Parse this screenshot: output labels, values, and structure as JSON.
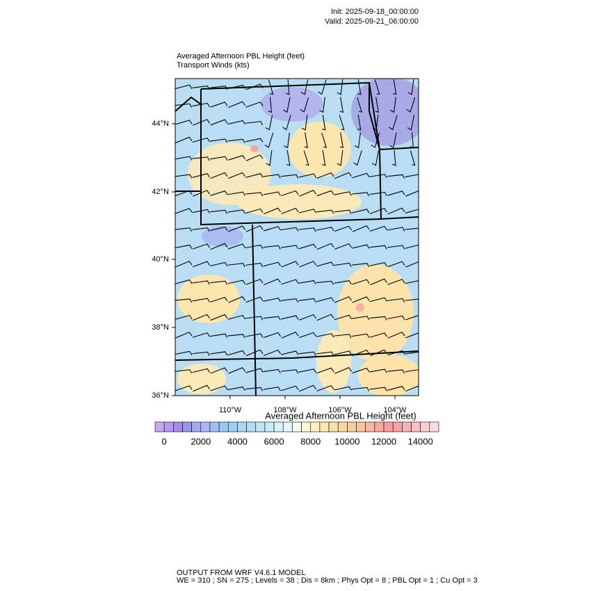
{
  "header": {
    "init": "Init: 2025-09-18_00:00:00",
    "valid": "Valid: 2025-09-21_06:00:00"
  },
  "map": {
    "title": "Averaged Afternoon PBL Height   (feet)",
    "subtitle": "Transport Winds   (kts)",
    "lat_labels": [
      "44°N",
      "42°N",
      "40°N",
      "38°N",
      "36°N"
    ],
    "lon_labels": [
      "110°W",
      "108°W",
      "106°W",
      "104°W"
    ]
  },
  "colorbar": {
    "title": "Averaged Afternoon PBL Height  (feet)",
    "labels": [
      "0",
      "2000",
      "4000",
      "6000",
      "8000",
      "10000",
      "12000",
      "14000"
    ],
    "colors": [
      "#c9a9f2",
      "#b59cf0",
      "#a38eea",
      "#9a96ec",
      "#a3a9f2",
      "#a8b7f3",
      "#9fc0f2",
      "#9ac8f2",
      "#9fd0f6",
      "#a9d8f8",
      "#b3def8",
      "#bde5f8",
      "#c8ebf8",
      "#d8f1f8",
      "#e8f6f8",
      "#f4faf4",
      "#fff8d2",
      "#fff0c0",
      "#fde8b2",
      "#fbe0a8",
      "#f9d8a2",
      "#f8d0a0",
      "#f8c6a0",
      "#f8b8a0",
      "#f8aaa0",
      "#f69c9c",
      "#f6a4a4",
      "#f7b2b2",
      "#f8c0c0",
      "#f9cece",
      "#fbdcdc"
    ]
  },
  "footer": {
    "line1": "OUTPUT FROM WRF V4.6.1 MODEL",
    "line2": "WE = 310 ; SN = 275 ; Levels = 38 ; Dis = 8km ; Phys Opt = 8 ; PBL Opt = 1 ; Cu Opt = 3"
  }
}
